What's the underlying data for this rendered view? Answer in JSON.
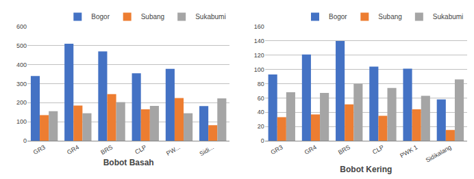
{
  "chart_data": [
    {
      "type": "bar",
      "xlabel": "Bobot Basah",
      "categories": [
        "GR3",
        "GR4",
        "BRS",
        "CLP",
        "PW...",
        "Sidi..."
      ],
      "series": [
        {
          "name": "Bogor",
          "color": "#4472C4",
          "values": [
            340,
            510,
            470,
            355,
            378,
            182
          ]
        },
        {
          "name": "Subang",
          "color": "#ED7D31",
          "values": [
            135,
            185,
            245,
            165,
            225,
            82
          ]
        },
        {
          "name": "Sukabumi",
          "color": "#A5A5A5",
          "values": [
            155,
            145,
            203,
            183,
            145,
            223
          ]
        }
      ],
      "ylim": [
        0,
        600
      ],
      "yticks": [
        0,
        100,
        200,
        300,
        400,
        500,
        600
      ],
      "grid": true,
      "legend": "upper right"
    },
    {
      "type": "bar",
      "xlabel": "Bobot Kering",
      "categories": [
        "GR3",
        "GR4",
        "BRS",
        "CLP",
        "PWK 1",
        "Sidikalang"
      ],
      "series": [
        {
          "name": "Bogor",
          "color": "#4472C4",
          "values": [
            93,
            121,
            140,
            104,
            101,
            58
          ]
        },
        {
          "name": "Subang",
          "color": "#ED7D31",
          "values": [
            33,
            37,
            51,
            35,
            44,
            15
          ]
        },
        {
          "name": "Sukabumi",
          "color": "#A5A5A5",
          "values": [
            68,
            67,
            80,
            74,
            63,
            86
          ]
        }
      ],
      "ylim": [
        0,
        160
      ],
      "yticks": [
        0,
        20,
        40,
        60,
        80,
        100,
        120,
        140,
        160
      ],
      "grid": true,
      "legend": "upper right"
    }
  ]
}
